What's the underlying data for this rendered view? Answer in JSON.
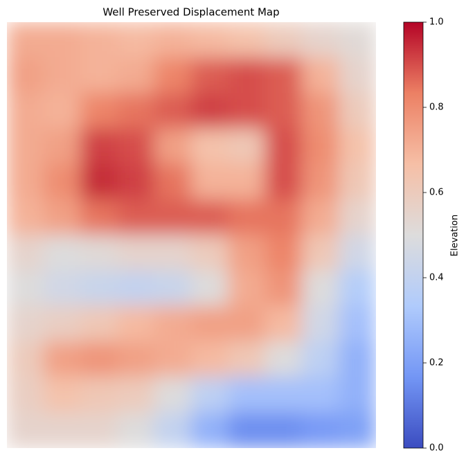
{
  "chart_data": {
    "type": "heatmap",
    "title": "Well Preserved Displacement Map",
    "values": [
      [
        0.72,
        0.72,
        0.7,
        0.68,
        0.7,
        0.68,
        0.65,
        0.6,
        0.55,
        0.52
      ],
      [
        0.75,
        0.72,
        0.7,
        0.72,
        0.82,
        0.88,
        0.9,
        0.88,
        0.7,
        0.55
      ],
      [
        0.72,
        0.7,
        0.82,
        0.85,
        0.88,
        0.92,
        0.9,
        0.88,
        0.78,
        0.6
      ],
      [
        0.72,
        0.75,
        0.92,
        0.9,
        0.75,
        0.65,
        0.62,
        0.9,
        0.8,
        0.65
      ],
      [
        0.72,
        0.8,
        0.95,
        0.92,
        0.85,
        0.7,
        0.7,
        0.9,
        0.78,
        0.62
      ],
      [
        0.7,
        0.75,
        0.85,
        0.88,
        0.88,
        0.88,
        0.85,
        0.85,
        0.72,
        0.55
      ],
      [
        0.55,
        0.5,
        0.52,
        0.55,
        0.55,
        0.6,
        0.75,
        0.82,
        0.62,
        0.45
      ],
      [
        0.5,
        0.45,
        0.42,
        0.4,
        0.42,
        0.5,
        0.72,
        0.78,
        0.5,
        0.35
      ],
      [
        0.55,
        0.58,
        0.62,
        0.68,
        0.72,
        0.75,
        0.75,
        0.68,
        0.45,
        0.3
      ],
      [
        0.6,
        0.75,
        0.78,
        0.75,
        0.72,
        0.68,
        0.62,
        0.5,
        0.38,
        0.25
      ],
      [
        0.58,
        0.65,
        0.62,
        0.6,
        0.5,
        0.38,
        0.3,
        0.3,
        0.3,
        0.25
      ],
      [
        0.55,
        0.55,
        0.55,
        0.5,
        0.4,
        0.25,
        0.15,
        0.15,
        0.18,
        0.2
      ]
    ],
    "colormap": [
      "#3b4cc0",
      "#7396f5",
      "#b0cbfc",
      "#dddcdc",
      "#f6bfa6",
      "#ec8064",
      "#b40426"
    ],
    "clim": [
      0,
      1
    ],
    "cticks": [
      {
        "value": 0,
        "label": "0.0"
      },
      {
        "value": 0.2,
        "label": "0.2"
      },
      {
        "value": 0.4,
        "label": "0.4"
      },
      {
        "value": 0.6,
        "label": "0.6"
      },
      {
        "value": 0.8,
        "label": "0.8"
      },
      {
        "value": 1,
        "label": "1.0"
      }
    ],
    "colorbar_label": "Elevation"
  }
}
